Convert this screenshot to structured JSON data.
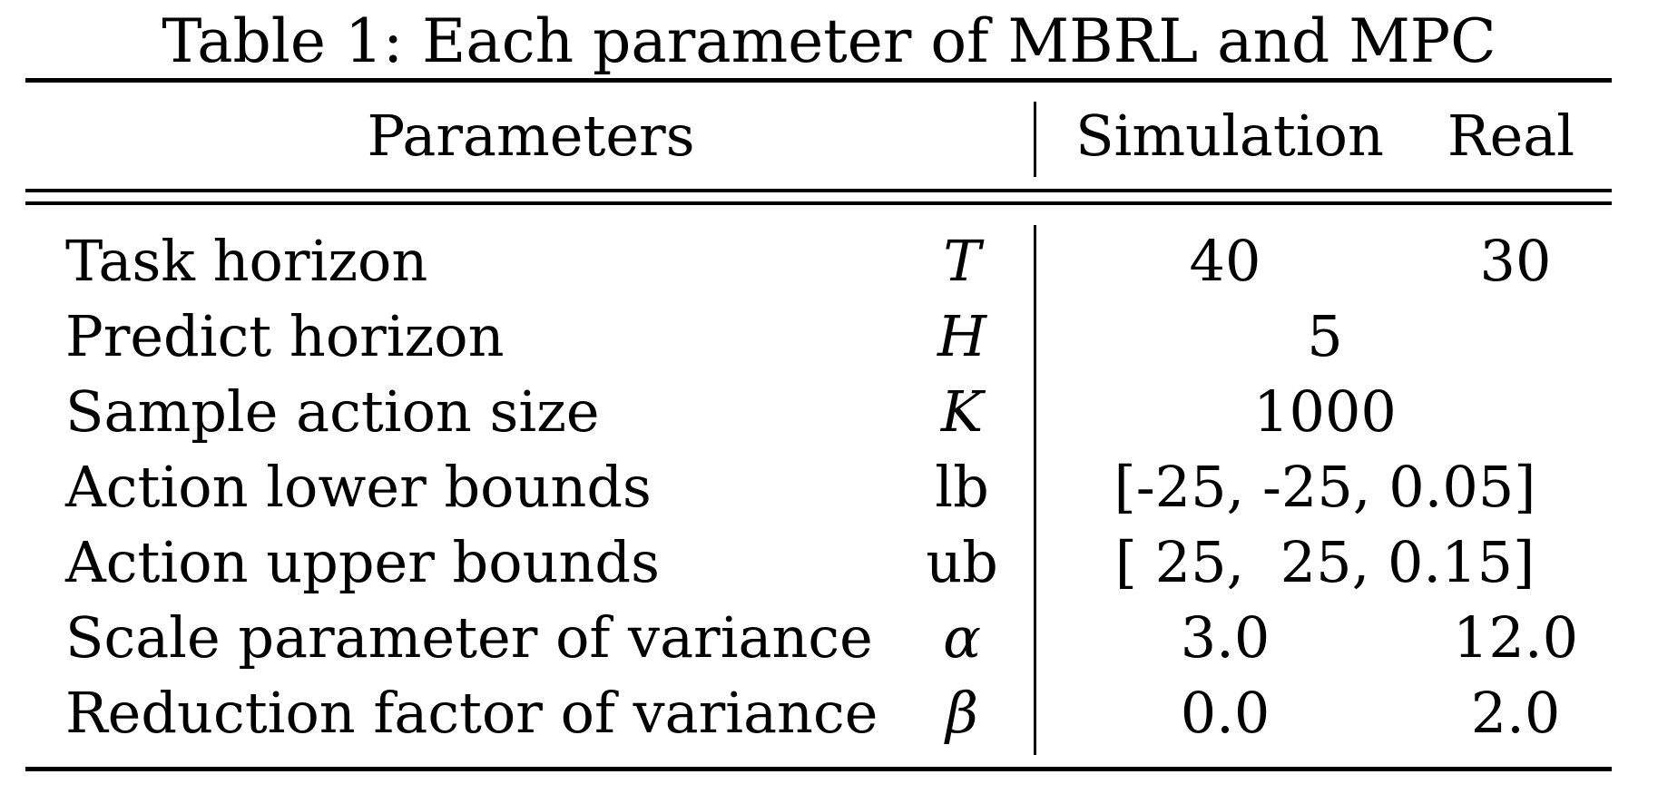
{
  "caption": "Table 1: Each parameter of MBRL and MPC",
  "header": {
    "parameters": "Parameters",
    "simulation": "Simulation",
    "real": "Real"
  },
  "rows": [
    {
      "name": "Task horizon",
      "symbol": "T",
      "simulation": "40",
      "real": "30"
    },
    {
      "name": "Predict horizon",
      "symbol": "H",
      "value": "5"
    },
    {
      "name": "Sample action size",
      "symbol": "K",
      "value": "1000"
    },
    {
      "name": "Action lower bounds",
      "symbol": "lb",
      "value": "[-25, -25, 0.05]"
    },
    {
      "name": "Action upper bounds",
      "symbol": "ub",
      "value": "[ 25,  25, 0.15]"
    },
    {
      "name": "Scale parameter of variance",
      "symbol": "α",
      "simulation": "3.0",
      "real": "12.0"
    },
    {
      "name": "Reduction factor of variance",
      "symbol": "β",
      "simulation": "0.0",
      "real": "2.0"
    }
  ]
}
